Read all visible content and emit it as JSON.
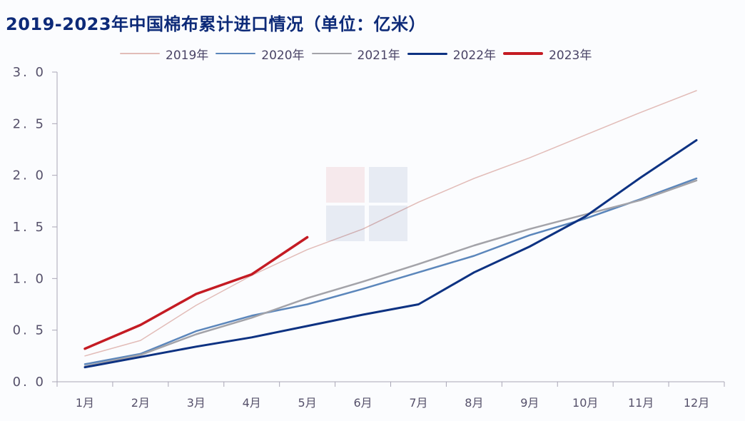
{
  "title": "2019-2023年中国棉布累计进口情况（单位：亿米）",
  "legend": [
    {
      "label": "2019年",
      "color": "#e2bcb8",
      "width": 1.5
    },
    {
      "label": "2020年",
      "color": "#5b86bb",
      "width": 2.5
    },
    {
      "label": "2021年",
      "color": "#a3a3a9",
      "width": 2.5
    },
    {
      "label": "2022年",
      "color": "#0d3282",
      "width": 3
    },
    {
      "label": "2023年",
      "color": "#c41b23",
      "width": 3.5
    }
  ],
  "chart_data": {
    "type": "line",
    "title": "2019-2023年中国棉布累计进口情况（单位：亿米）",
    "xlabel": "",
    "ylabel": "亿米",
    "ylim": [
      0,
      3.0
    ],
    "yticks": [
      "3.0",
      "2.5",
      "2.0",
      "1.5",
      "1.0",
      "0.5",
      "0.0"
    ],
    "grid": false,
    "legend_position": "top",
    "categories": [
      "1月",
      "2月",
      "3月",
      "4月",
      "5月",
      "6月",
      "7月",
      "8月",
      "9月",
      "10月",
      "11月",
      "12月"
    ],
    "series": [
      {
        "name": "2019年",
        "values": [
          0.25,
          0.4,
          0.74,
          1.03,
          1.28,
          1.48,
          1.74,
          1.97,
          2.17,
          2.39,
          2.61,
          2.82
        ]
      },
      {
        "name": "2020年",
        "values": [
          0.17,
          0.27,
          0.49,
          0.64,
          0.75,
          0.9,
          1.06,
          1.22,
          1.42,
          1.58,
          1.77,
          1.97
        ]
      },
      {
        "name": "2021年",
        "values": [
          0.15,
          0.26,
          0.46,
          0.62,
          0.81,
          0.97,
          1.14,
          1.32,
          1.48,
          1.62,
          1.76,
          1.95
        ]
      },
      {
        "name": "2022年",
        "values": [
          0.14,
          0.24,
          0.34,
          0.43,
          0.54,
          0.65,
          0.75,
          1.06,
          1.31,
          1.6,
          1.98,
          2.34
        ]
      },
      {
        "name": "2023年",
        "values": [
          0.32,
          0.55,
          0.85,
          1.04,
          1.4
        ]
      }
    ]
  }
}
